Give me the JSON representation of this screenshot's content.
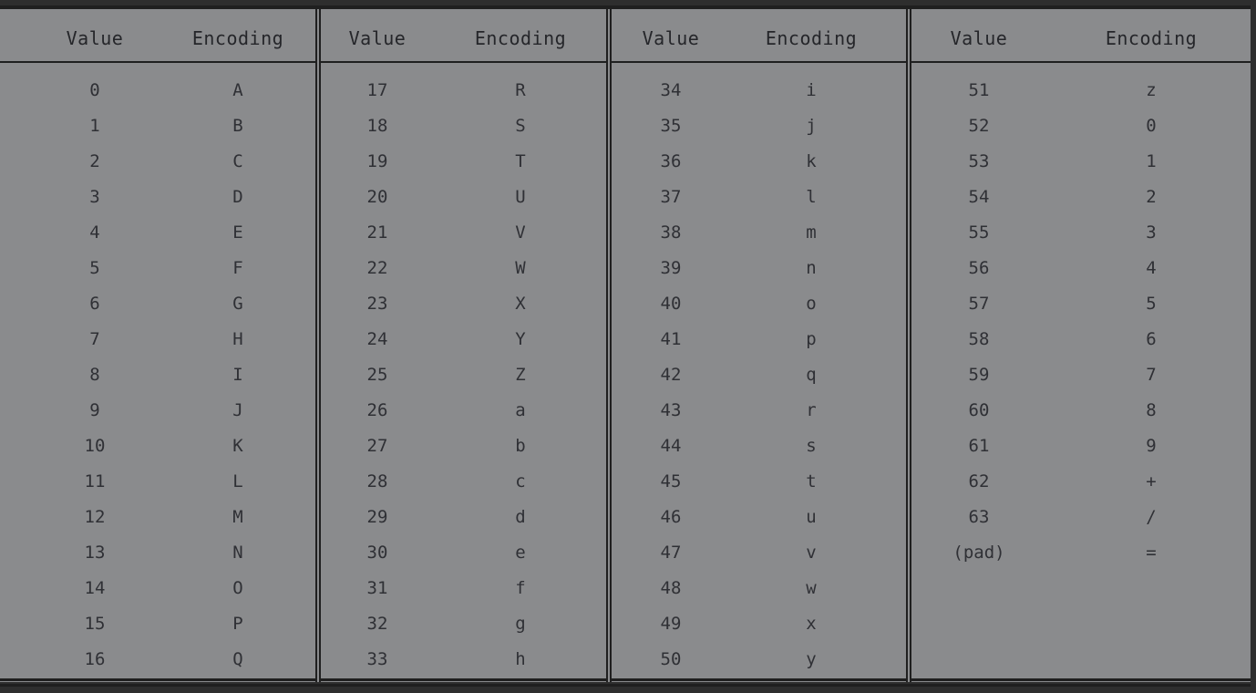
{
  "table": {
    "headers": {
      "value": "Value",
      "encoding": "Encoding"
    },
    "sections": [
      {
        "rows": [
          [
            "0",
            "A"
          ],
          [
            "1",
            "B"
          ],
          [
            "2",
            "C"
          ],
          [
            "3",
            "D"
          ],
          [
            "4",
            "E"
          ],
          [
            "5",
            "F"
          ],
          [
            "6",
            "G"
          ],
          [
            "7",
            "H"
          ],
          [
            "8",
            "I"
          ],
          [
            "9",
            "J"
          ],
          [
            "10",
            "K"
          ],
          [
            "11",
            "L"
          ],
          [
            "12",
            "M"
          ],
          [
            "13",
            "N"
          ],
          [
            "14",
            "O"
          ],
          [
            "15",
            "P"
          ],
          [
            "16",
            "Q"
          ]
        ]
      },
      {
        "rows": [
          [
            "17",
            "R"
          ],
          [
            "18",
            "S"
          ],
          [
            "19",
            "T"
          ],
          [
            "20",
            "U"
          ],
          [
            "21",
            "V"
          ],
          [
            "22",
            "W"
          ],
          [
            "23",
            "X"
          ],
          [
            "24",
            "Y"
          ],
          [
            "25",
            "Z"
          ],
          [
            "26",
            "a"
          ],
          [
            "27",
            "b"
          ],
          [
            "28",
            "c"
          ],
          [
            "29",
            "d"
          ],
          [
            "30",
            "e"
          ],
          [
            "31",
            "f"
          ],
          [
            "32",
            "g"
          ],
          [
            "33",
            "h"
          ]
        ]
      },
      {
        "rows": [
          [
            "34",
            "i"
          ],
          [
            "35",
            "j"
          ],
          [
            "36",
            "k"
          ],
          [
            "37",
            "l"
          ],
          [
            "38",
            "m"
          ],
          [
            "39",
            "n"
          ],
          [
            "40",
            "o"
          ],
          [
            "41",
            "p"
          ],
          [
            "42",
            "q"
          ],
          [
            "43",
            "r"
          ],
          [
            "44",
            "s"
          ],
          [
            "45",
            "t"
          ],
          [
            "46",
            "u"
          ],
          [
            "47",
            "v"
          ],
          [
            "48",
            "w"
          ],
          [
            "49",
            "x"
          ],
          [
            "50",
            "y"
          ]
        ]
      },
      {
        "rows": [
          [
            "51",
            "z"
          ],
          [
            "52",
            "0"
          ],
          [
            "53",
            "1"
          ],
          [
            "54",
            "2"
          ],
          [
            "55",
            "3"
          ],
          [
            "56",
            "4"
          ],
          [
            "57",
            "5"
          ],
          [
            "58",
            "6"
          ],
          [
            "59",
            "7"
          ],
          [
            "60",
            "8"
          ],
          [
            "61",
            "9"
          ],
          [
            "62",
            "+"
          ],
          [
            "63",
            "/"
          ],
          [
            "(pad)",
            "="
          ]
        ]
      }
    ]
  }
}
